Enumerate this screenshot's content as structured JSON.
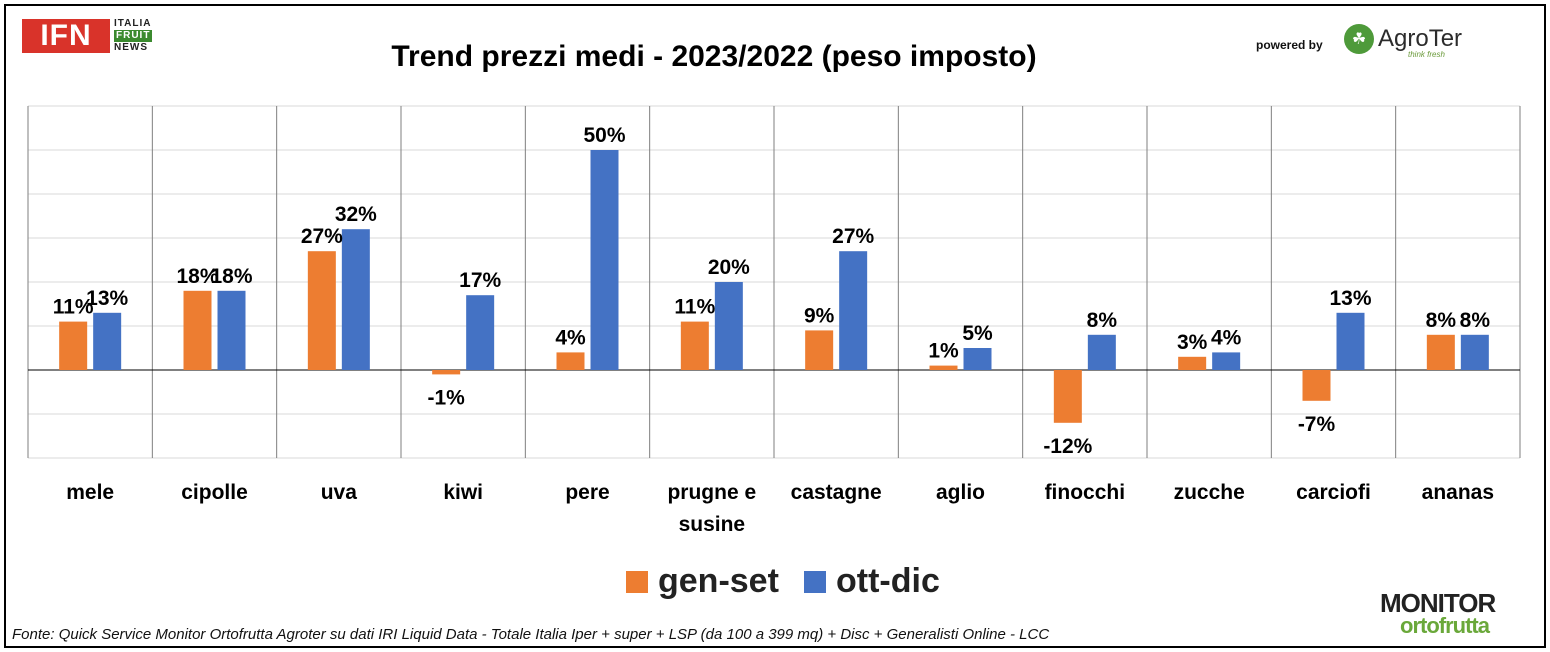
{
  "header": {
    "title": "Trend prezzi medi - 2023/2022 (peso imposto)",
    "powered_by": "powered by",
    "ifn_logo": {
      "main": "IFN",
      "line1": "ITALIA",
      "line2": "FRUIT",
      "line3": "NEWS"
    },
    "agroter_logo": {
      "name": "AgroTer",
      "tagline": "think fresh"
    }
  },
  "footer": {
    "source": "Fonte: Quick Service Monitor Ortofrutta Agroter su dati IRI Liquid Data - Totale Italia Iper + super + LSP (da 100 a 399 mq) + Disc + Generalisti Online - LCC",
    "monitor_logo": {
      "line1": "MONITOR",
      "line2": "ortofrutta"
    }
  },
  "colors": {
    "gen_set": "#ed7d31",
    "ott_dic": "#4472c4",
    "grid": "#d9d9d9",
    "axis": "#000000"
  },
  "chart_data": {
    "type": "bar",
    "title": "Trend prezzi medi - 2023/2022 (peso imposto)",
    "categories": [
      "mele",
      "cipolle",
      "uva",
      "kiwi",
      "pere",
      "prugne e susine",
      "castagne",
      "aglio",
      "finocchi",
      "zucche",
      "carciofi",
      "ananas"
    ],
    "series": [
      {
        "name": "gen-set",
        "values": [
          11,
          18,
          27,
          -1,
          4,
          11,
          9,
          1,
          -12,
          3,
          -7,
          8
        ],
        "labels": [
          "11%",
          "18%",
          "27%",
          "-1%",
          "4%",
          "11%",
          "9%",
          "1%",
          "-12%",
          "3%",
          "-7%",
          "8%"
        ]
      },
      {
        "name": "ott-dic",
        "values": [
          13,
          18,
          32,
          17,
          50,
          20,
          27,
          5,
          8,
          4,
          13,
          8
        ],
        "labels": [
          "13%",
          "18%",
          "32%",
          "17%",
          "50%",
          "20%",
          "27%",
          "5%",
          "8%",
          "4%",
          "13%",
          "8%"
        ]
      }
    ],
    "ylim": [
      -20,
      60
    ],
    "grid": true,
    "legend": "bottom"
  }
}
